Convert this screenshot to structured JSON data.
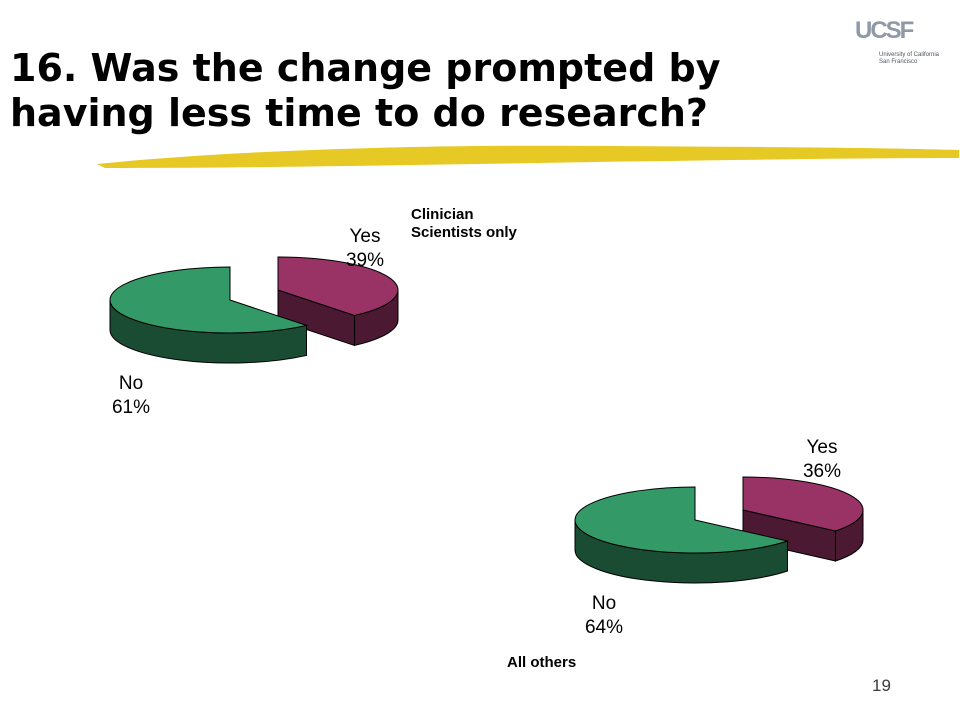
{
  "slide": {
    "title_line1": "16. Was the change prompted by",
    "title_line2": "having less time to do research?",
    "page_number": "19",
    "logo": {
      "mark": "UCSF",
      "line1": "University of California",
      "line2": "San Francisco"
    },
    "colors": {
      "underline": "#e6c619",
      "yes_top": "#993366",
      "yes_side": "#4c1933",
      "no_top": "#339966",
      "no_side": "#1a4c33"
    }
  },
  "chart_data": [
    {
      "type": "pie",
      "style": "3d-exploded",
      "note_line1": "Clinician",
      "note_line2": "Scientists only",
      "slices": [
        {
          "label": "Yes",
          "value": 39,
          "display": "39%"
        },
        {
          "label": "No",
          "value": 61,
          "display": "61%"
        }
      ]
    },
    {
      "type": "pie",
      "style": "3d-exploded",
      "note_line1": "All others",
      "slices": [
        {
          "label": "Yes",
          "value": 36,
          "display": "36%"
        },
        {
          "label": "No",
          "value": 64,
          "display": "64%"
        }
      ]
    }
  ]
}
